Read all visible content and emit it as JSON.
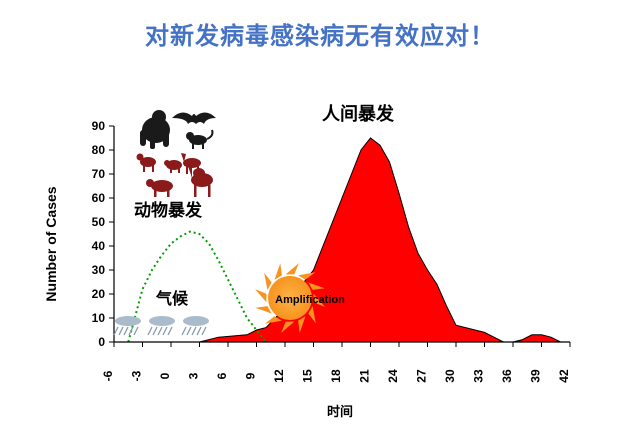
{
  "headline": "对新发病毒感染病无有效应对！",
  "chart_data": {
    "type": "area",
    "xlabel": "时间",
    "ylabel": "Number of Cases",
    "xlim": [
      -6,
      42
    ],
    "ylim": [
      0,
      90
    ],
    "xticks": [
      -6,
      -3,
      0,
      3,
      6,
      9,
      12,
      15,
      18,
      21,
      24,
      27,
      30,
      33,
      36,
      39,
      42
    ],
    "yticks": [
      0,
      10,
      20,
      30,
      40,
      50,
      60,
      70,
      80,
      90
    ],
    "grid": false,
    "series": [
      {
        "kind": "filled-area",
        "color": "#ff0000",
        "x": [
          -6,
          3,
          5,
          8,
          9,
          10,
          11,
          12,
          13,
          14,
          15,
          16,
          17,
          18,
          19,
          20,
          21,
          22,
          23,
          24,
          25,
          26,
          27,
          28,
          29,
          30,
          31,
          32,
          33,
          34,
          35,
          36,
          37,
          38,
          39,
          40,
          41,
          42
        ],
        "y": [
          0,
          0,
          2,
          3,
          5,
          6,
          10,
          15,
          20,
          25,
          30,
          40,
          50,
          60,
          70,
          80,
          85,
          82,
          75,
          62,
          48,
          37,
          30,
          24,
          15,
          7,
          6,
          5,
          4,
          2,
          0,
          0,
          1,
          3,
          3,
          2,
          0,
          0
        ]
      },
      {
        "kind": "dotted-line",
        "color": "#00a000",
        "x": [
          -4.5,
          -3,
          -2,
          -1,
          0,
          1,
          2,
          3,
          4,
          5,
          6,
          7,
          8,
          9,
          10
        ],
        "y": [
          0,
          22,
          30,
          36,
          41,
          44,
          46,
          45,
          41,
          34,
          26,
          18,
          10,
          5,
          0
        ]
      }
    ],
    "annotations": [
      {
        "text": "人间暴发"
      },
      {
        "text": "动物暴发"
      },
      {
        "text": "气候"
      },
      {
        "text": "Amplification"
      }
    ]
  },
  "colors": {
    "headline": "#4472c4",
    "human_outbreak": "#ff0000",
    "animal_curve": "#00a000",
    "amplification_sun": "#f7931e",
    "animal_silhouettes": "#8b1a1a"
  }
}
